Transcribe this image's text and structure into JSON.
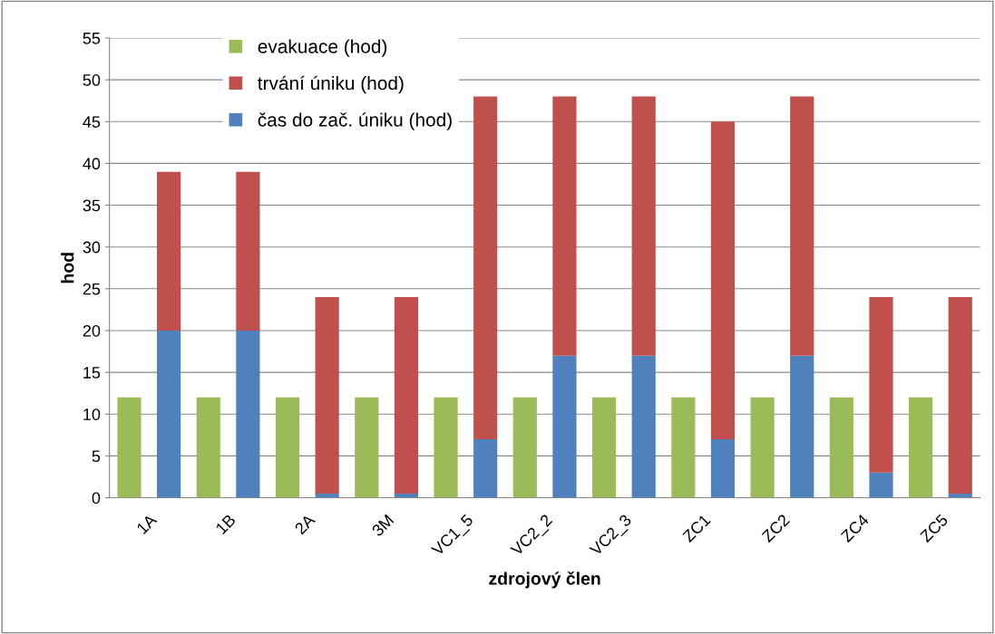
{
  "chart_data": {
    "type": "bar",
    "stacked": true,
    "xlabel": "zdrojový člen",
    "ylabel": "hod",
    "categories": [
      null,
      "1A",
      null,
      "1B",
      null,
      "2A",
      null,
      "3M",
      null,
      "VC1_5",
      null,
      "VC2_2",
      null,
      "VC2_3",
      null,
      "ZC1",
      null,
      "ZC2",
      null,
      "ZC4",
      null,
      "ZC5"
    ],
    "series": [
      {
        "name": "evakuace (hod)",
        "color": "#9bbb59",
        "values": [
          12,
          null,
          12,
          null,
          12,
          null,
          12,
          null,
          12,
          null,
          12,
          null,
          12,
          null,
          12,
          null,
          12,
          null,
          12,
          null,
          12,
          null
        ]
      },
      {
        "name": "čas do zač. úniku (hod)",
        "color": "#4f81bd",
        "values": [
          null,
          20,
          null,
          20,
          null,
          0.5,
          null,
          0.5,
          null,
          7,
          null,
          17,
          null,
          17,
          null,
          7,
          null,
          17,
          null,
          3,
          null,
          0.5
        ]
      },
      {
        "name": "trvání úniku (hod)",
        "color": "#c0504d",
        "values": [
          null,
          19,
          null,
          19,
          null,
          23.5,
          null,
          23.5,
          null,
          41,
          null,
          31,
          null,
          31,
          null,
          38,
          null,
          31,
          null,
          21,
          null,
          23.5
        ]
      }
    ],
    "ylim": [
      0,
      55
    ],
    "yticks": [
      0,
      5,
      10,
      15,
      20,
      25,
      30,
      35,
      40,
      45,
      50,
      55
    ],
    "grid": "y",
    "legend": "top left"
  }
}
